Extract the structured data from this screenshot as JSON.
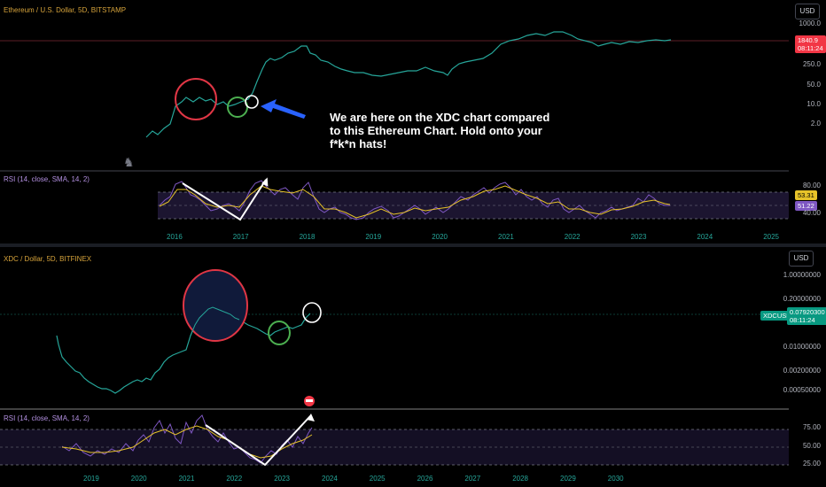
{
  "top_chart": {
    "title": "Ethereum / U.S. Dollar, 5D, BITSTAMP",
    "currency": "USD",
    "y_ticks": [
      "1000.0",
      "250.0",
      "50.0",
      "10.0",
      "2.0"
    ],
    "price_tag": {
      "price": "1840.9",
      "time": "08:11:24",
      "color": "#f23645"
    },
    "annotation": "We are here on the XDC chart compared to this Ethereum Chart.  Hold onto your f*k*n hats!",
    "rsi": {
      "title": "RSI (14, close, SMA, 14, 2)",
      "y_ticks": [
        "80.00",
        "40.00"
      ],
      "value_a": "53.31",
      "value_b": "51.22"
    },
    "x_ticks": [
      "2016",
      "2017",
      "2018",
      "2019",
      "2020",
      "2021",
      "2022",
      "2023",
      "2024",
      "2025"
    ]
  },
  "bottom_chart": {
    "title": "XDC / Dollar, 5D, BITFINEX",
    "currency": "USD",
    "y_ticks": [
      "1.00000000",
      "0.20000000",
      "0.01000000",
      "0.00200000",
      "0.00050000"
    ],
    "price_tag": {
      "symbol": "XDCUSD",
      "price": "0.07920300",
      "time": "08:11:24",
      "color": "#089981"
    },
    "rsi": {
      "title": "RSI (14, close, SMA, 14, 2)",
      "y_ticks": [
        "75.00",
        "50.00",
        "25.00"
      ]
    },
    "x_ticks": [
      "2019",
      "2020",
      "2021",
      "2022",
      "2023",
      "2024",
      "2025",
      "2026",
      "2027",
      "2028",
      "2029",
      "2030"
    ]
  },
  "chart_data": [
    {
      "type": "line",
      "title": "Ethereum / U.S. Dollar, 5D, BITSTAMP",
      "scale": "log",
      "x": [
        "2015.8",
        "2016.0",
        "2016.2",
        "2016.5",
        "2016.8",
        "2017.0",
        "2017.3",
        "2017.5",
        "2017.8",
        "2018.0",
        "2018.3",
        "2018.6",
        "2018.9",
        "2019.2",
        "2019.5",
        "2019.9",
        "2020.2",
        "2020.5",
        "2020.9",
        "2021.1",
        "2021.4",
        "2021.9",
        "2022.2",
        "2022.5",
        "2022.9",
        "2023.2",
        "2023.6"
      ],
      "values": [
        1,
        1.5,
        8,
        12,
        12,
        9,
        10,
        30,
        300,
        600,
        1300,
        500,
        250,
        150,
        180,
        220,
        150,
        190,
        240,
        400,
        700,
        1300,
        3800,
        4500,
        3000,
        1700,
        1400
      ],
      "ylim": [
        0.6,
        6000
      ]
    },
    {
      "type": "line",
      "title": "XDC / Dollar, 5D, BITFINEX",
      "scale": "log",
      "x": [
        "2018.6",
        "2018.8",
        "2019.0",
        "2019.3",
        "2019.6",
        "2019.9",
        "2020.2",
        "2020.5",
        "2020.8",
        "2021.1",
        "2021.4",
        "2021.7",
        "2022.0",
        "2022.3",
        "2022.6",
        "2022.9",
        "2023.2",
        "2023.5"
      ],
      "values": [
        0.02,
        0.008,
        0.003,
        0.0015,
        0.001,
        0.0008,
        0.001,
        0.002,
        0.004,
        0.01,
        0.08,
        0.12,
        0.1,
        0.06,
        0.04,
        0.03,
        0.04,
        0.079203
      ],
      "ylim": [
        0.0004,
        2
      ]
    }
  ]
}
